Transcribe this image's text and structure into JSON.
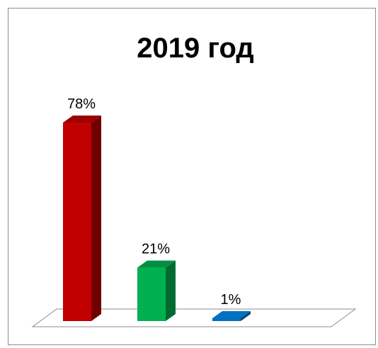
{
  "chart_data": {
    "type": "bar",
    "title": "2019 год",
    "categories": [
      "",
      "",
      ""
    ],
    "values": [
      78,
      21,
      1
    ],
    "data_labels": [
      "78%",
      "21%",
      "1%"
    ],
    "colors": [
      "#c00000",
      "#00b050",
      "#0070c0"
    ],
    "ylim": [
      0,
      100
    ],
    "grid": false,
    "legend": "none",
    "style": "3d-column"
  }
}
